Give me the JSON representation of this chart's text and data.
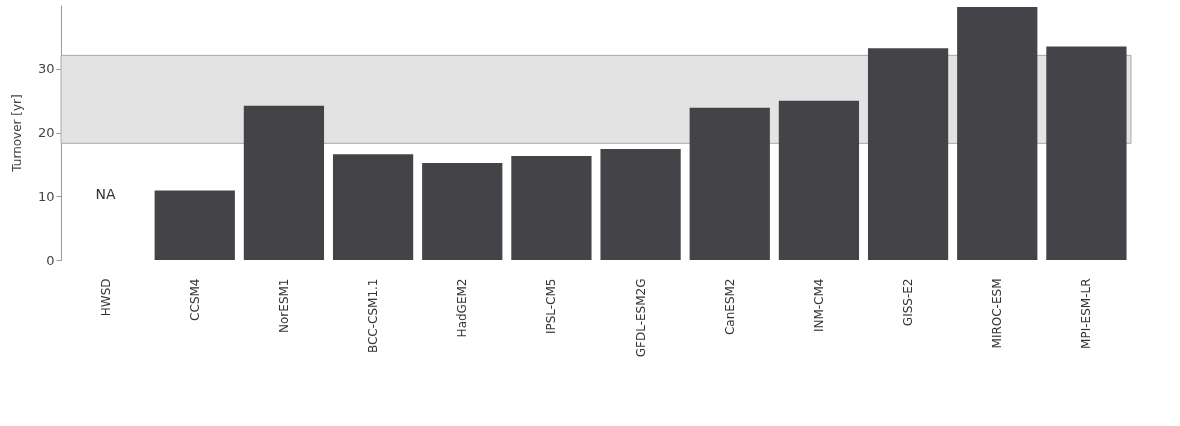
{
  "chart_data": {
    "type": "bar",
    "ylabel": "Turnover [yr]",
    "categories": [
      "HWSD",
      "CCSM4",
      "NorESM1",
      "BCC-CSM1.1",
      "HadGEM2",
      "IPSL-CM5",
      "GFDL-ESM2G",
      "CanESM2",
      "INM-CM4",
      "GISS-E2",
      "MIROC-ESM",
      "MPI-ESM-LR"
    ],
    "values": [
      null,
      10.9,
      24.2,
      16.6,
      15.2,
      16.3,
      17.4,
      23.9,
      25.0,
      33.2,
      39.7,
      33.5
    ],
    "color": "#444448",
    "ylim": [
      0,
      40
    ],
    "yticks": [
      0,
      10,
      20,
      30
    ],
    "grid": false,
    "bands": [
      {
        "axis": "y",
        "from": 18.3,
        "to": 32.1,
        "color": "#e3e3e3"
      }
    ],
    "annotations": [
      "NA"
    ]
  }
}
